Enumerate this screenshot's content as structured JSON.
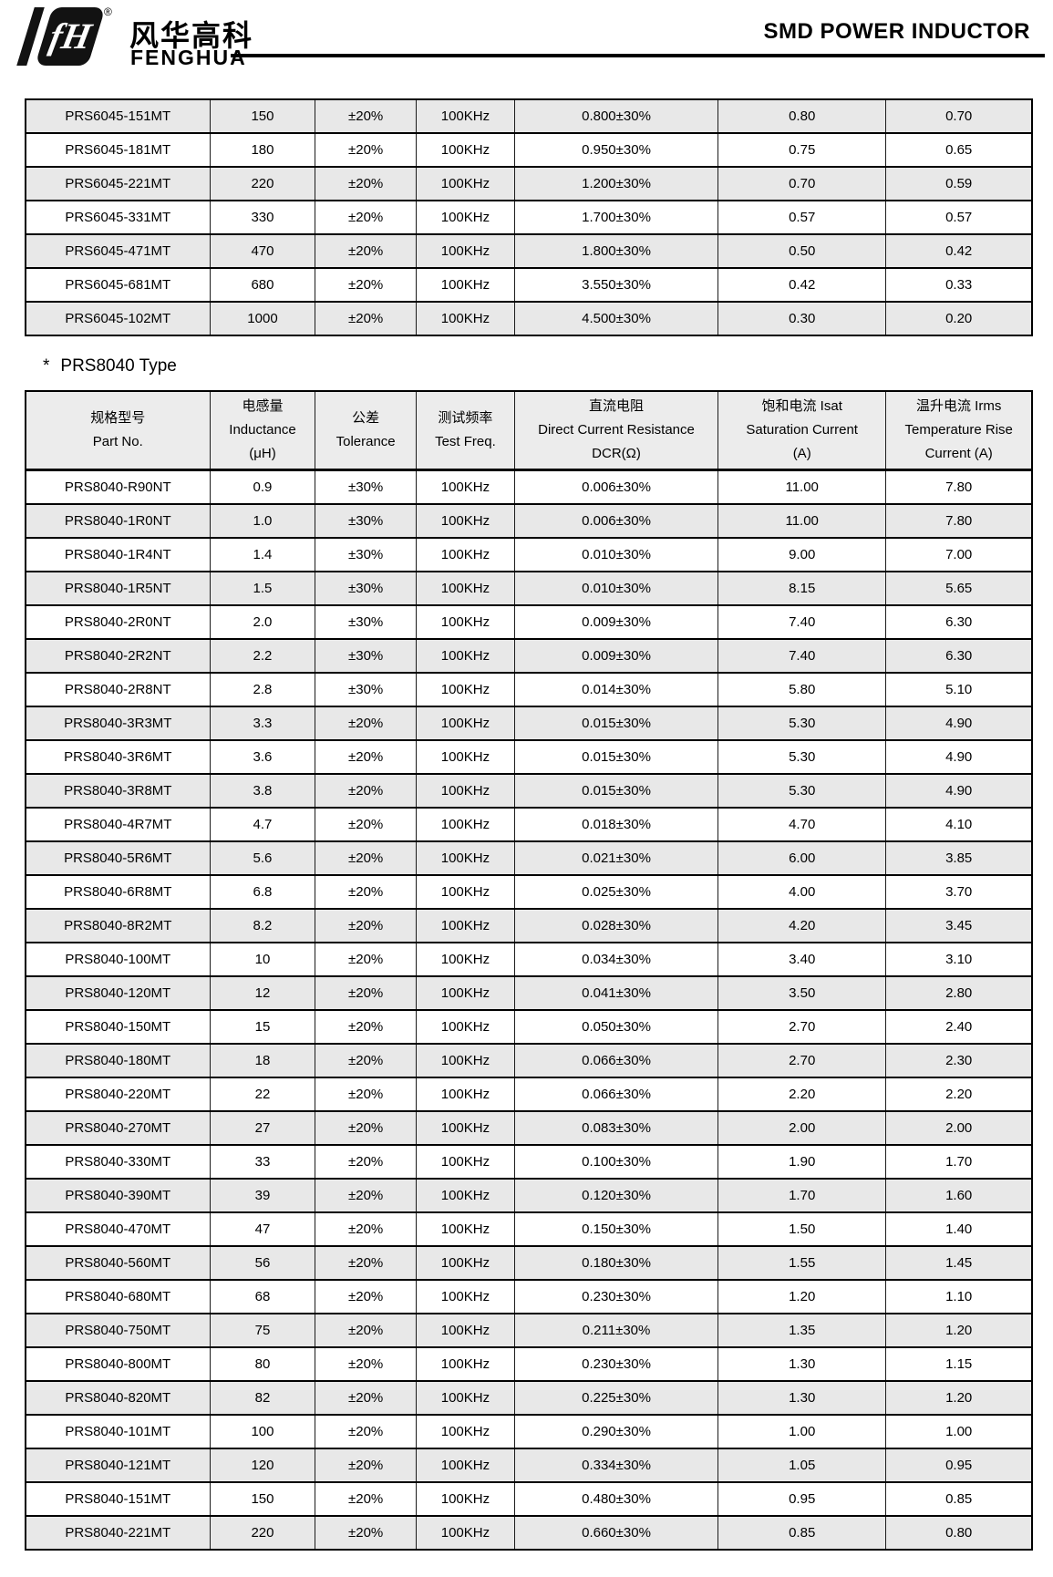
{
  "header": {
    "logo_monogram": "fH",
    "registered_mark": "®",
    "brand_cn": "风华高科",
    "brand_en": "FENGHUA",
    "page_title": "SMD POWER INDUCTOR"
  },
  "section": {
    "marker": "*",
    "title": "PRS8040 Type"
  },
  "table_header": {
    "columns": [
      {
        "lines": [
          "规格型号",
          "Part No."
        ]
      },
      {
        "lines": [
          "电感量",
          "Inductance",
          "(μH)"
        ]
      },
      {
        "lines": [
          "公差",
          "Tolerance"
        ]
      },
      {
        "lines": [
          "测试频率",
          "Test Freq."
        ]
      },
      {
        "lines": [
          "直流电阻",
          "Direct Current Resistance",
          "DCR(Ω)"
        ]
      },
      {
        "lines": [
          "饱和电流  Isat",
          "Saturation Current",
          "(A)"
        ]
      },
      {
        "lines": [
          "温升电流  Irms",
          "Temperature Rise",
          "Current (A)"
        ]
      }
    ]
  },
  "prs6045_rows": [
    [
      "PRS6045-151MT",
      "150",
      "±20%",
      "100KHz",
      "0.800±30%",
      "0.80",
      "0.70"
    ],
    [
      "PRS6045-181MT",
      "180",
      "±20%",
      "100KHz",
      "0.950±30%",
      "0.75",
      "0.65"
    ],
    [
      "PRS6045-221MT",
      "220",
      "±20%",
      "100KHz",
      "1.200±30%",
      "0.70",
      "0.59"
    ],
    [
      "PRS6045-331MT",
      "330",
      "±20%",
      "100KHz",
      "1.700±30%",
      "0.57",
      "0.57"
    ],
    [
      "PRS6045-471MT",
      "470",
      "±20%",
      "100KHz",
      "1.800±30%",
      "0.50",
      "0.42"
    ],
    [
      "PRS6045-681MT",
      "680",
      "±20%",
      "100KHz",
      "3.550±30%",
      "0.42",
      "0.33"
    ],
    [
      "PRS6045-102MT",
      "1000",
      "±20%",
      "100KHz",
      "4.500±30%",
      "0.30",
      "0.20"
    ]
  ],
  "prs8040_rows": [
    [
      "PRS8040-R90NT",
      "0.9",
      "±30%",
      "100KHz",
      "0.006±30%",
      "11.00",
      "7.80"
    ],
    [
      "PRS8040-1R0NT",
      "1.0",
      "±30%",
      "100KHz",
      "0.006±30%",
      "11.00",
      "7.80"
    ],
    [
      "PRS8040-1R4NT",
      "1.4",
      "±30%",
      "100KHz",
      "0.010±30%",
      "9.00",
      "7.00"
    ],
    [
      "PRS8040-1R5NT",
      "1.5",
      "±30%",
      "100KHz",
      "0.010±30%",
      "8.15",
      "5.65"
    ],
    [
      "PRS8040-2R0NT",
      "2.0",
      "±30%",
      "100KHz",
      "0.009±30%",
      "7.40",
      "6.30"
    ],
    [
      "PRS8040-2R2NT",
      "2.2",
      "±30%",
      "100KHz",
      "0.009±30%",
      "7.40",
      "6.30"
    ],
    [
      "PRS8040-2R8NT",
      "2.8",
      "±30%",
      "100KHz",
      "0.014±30%",
      "5.80",
      "5.10"
    ],
    [
      "PRS8040-3R3MT",
      "3.3",
      "±20%",
      "100KHz",
      "0.015±30%",
      "5.30",
      "4.90"
    ],
    [
      "PRS8040-3R6MT",
      "3.6",
      "±20%",
      "100KHz",
      "0.015±30%",
      "5.30",
      "4.90"
    ],
    [
      "PRS8040-3R8MT",
      "3.8",
      "±20%",
      "100KHz",
      "0.015±30%",
      "5.30",
      "4.90"
    ],
    [
      "PRS8040-4R7MT",
      "4.7",
      "±20%",
      "100KHz",
      "0.018±30%",
      "4.70",
      "4.10"
    ],
    [
      "PRS8040-5R6MT",
      "5.6",
      "±20%",
      "100KHz",
      "0.021±30%",
      "6.00",
      "3.85"
    ],
    [
      "PRS8040-6R8MT",
      "6.8",
      "±20%",
      "100KHz",
      "0.025±30%",
      "4.00",
      "3.70"
    ],
    [
      "PRS8040-8R2MT",
      "8.2",
      "±20%",
      "100KHz",
      "0.028±30%",
      "4.20",
      "3.45"
    ],
    [
      "PRS8040-100MT",
      "10",
      "±20%",
      "100KHz",
      "0.034±30%",
      "3.40",
      "3.10"
    ],
    [
      "PRS8040-120MT",
      "12",
      "±20%",
      "100KHz",
      "0.041±30%",
      "3.50",
      "2.80"
    ],
    [
      "PRS8040-150MT",
      "15",
      "±20%",
      "100KHz",
      "0.050±30%",
      "2.70",
      "2.40"
    ],
    [
      "PRS8040-180MT",
      "18",
      "±20%",
      "100KHz",
      "0.066±30%",
      "2.70",
      "2.30"
    ],
    [
      "PRS8040-220MT",
      "22",
      "±20%",
      "100KHz",
      "0.066±30%",
      "2.20",
      "2.20"
    ],
    [
      "PRS8040-270MT",
      "27",
      "±20%",
      "100KHz",
      "0.083±30%",
      "2.00",
      "2.00"
    ],
    [
      "PRS8040-330MT",
      "33",
      "±20%",
      "100KHz",
      "0.100±30%",
      "1.90",
      "1.70"
    ],
    [
      "PRS8040-390MT",
      "39",
      "±20%",
      "100KHz",
      "0.120±30%",
      "1.70",
      "1.60"
    ],
    [
      "PRS8040-470MT",
      "47",
      "±20%",
      "100KHz",
      "0.150±30%",
      "1.50",
      "1.40"
    ],
    [
      "PRS8040-560MT",
      "56",
      "±20%",
      "100KHz",
      "0.180±30%",
      "1.55",
      "1.45"
    ],
    [
      "PRS8040-680MT",
      "68",
      "±20%",
      "100KHz",
      "0.230±30%",
      "1.20",
      "1.10"
    ],
    [
      "PRS8040-750MT",
      "75",
      "±20%",
      "100KHz",
      "0.211±30%",
      "1.35",
      "1.20"
    ],
    [
      "PRS8040-800MT",
      "80",
      "±20%",
      "100KHz",
      "0.230±30%",
      "1.30",
      "1.15"
    ],
    [
      "PRS8040-820MT",
      "82",
      "±20%",
      "100KHz",
      "0.225±30%",
      "1.30",
      "1.20"
    ],
    [
      "PRS8040-101MT",
      "100",
      "±20%",
      "100KHz",
      "0.290±30%",
      "1.00",
      "1.00"
    ],
    [
      "PRS8040-121MT",
      "120",
      "±20%",
      "100KHz",
      "0.334±30%",
      "1.05",
      "0.95"
    ],
    [
      "PRS8040-151MT",
      "150",
      "±20%",
      "100KHz",
      "0.480±30%",
      "0.95",
      "0.85"
    ],
    [
      "PRS8040-221MT",
      "220",
      "±20%",
      "100KHz",
      "0.660±30%",
      "0.85",
      "0.80"
    ]
  ],
  "colors": {
    "alt_row": "#e8e8e8",
    "header_bg": "#ececec",
    "border": "#000000"
  }
}
